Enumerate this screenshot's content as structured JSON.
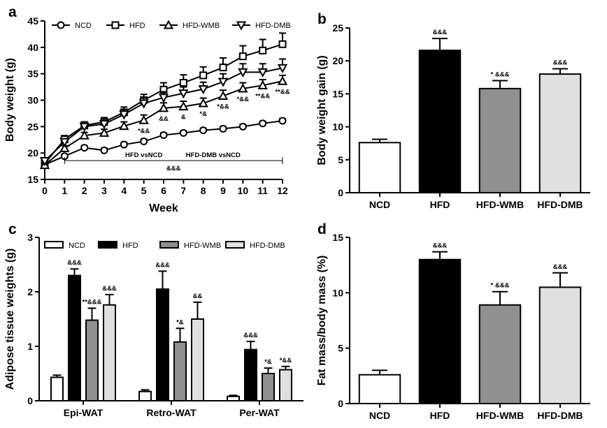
{
  "chart_data": [
    {
      "panel": "a",
      "type": "line",
      "xlabel": "Week",
      "ylabel": "Body weight (g)",
      "xlim": [
        0,
        12
      ],
      "ylim": [
        15,
        45
      ],
      "xticks": [
        "0",
        "1",
        "2",
        "3",
        "4",
        "5",
        "6",
        "7",
        "8",
        "9",
        "10",
        "11",
        "12"
      ],
      "yticks": [
        "15",
        "20",
        "25",
        "30",
        "35",
        "40",
        "45"
      ],
      "legend_position": "top",
      "x": [
        0,
        1,
        2,
        3,
        4,
        5,
        6,
        7,
        8,
        9,
        10,
        11,
        12
      ],
      "series": [
        {
          "name": "NCD",
          "marker": "circle",
          "values": [
            17.8,
            19.4,
            21.0,
            20.5,
            21.6,
            22.2,
            23.4,
            23.8,
            24.3,
            24.6,
            25.0,
            25.6,
            26.1
          ],
          "errors": [
            0.4,
            0.4,
            0.4,
            0.4,
            0.4,
            0.4,
            0.4,
            0.4,
            0.4,
            0.4,
            0.4,
            0.4,
            0.4
          ]
        },
        {
          "name": "HFD",
          "marker": "square",
          "values": [
            18.0,
            22.6,
            25.2,
            25.9,
            27.7,
            30.0,
            32.0,
            33.3,
            34.7,
            36.2,
            38.3,
            39.4,
            40.6
          ],
          "errors": [
            0.6,
            0.7,
            0.7,
            0.8,
            1.0,
            1.1,
            1.3,
            1.5,
            1.6,
            1.8,
            2.0,
            2.1,
            2.1
          ]
        },
        {
          "name": "HFD-WMB",
          "marker": "triangle-up",
          "values": [
            17.7,
            20.9,
            23.3,
            23.8,
            25.1,
            26.2,
            28.5,
            28.8,
            29.4,
            30.8,
            32.2,
            32.8,
            33.6
          ],
          "errors": [
            0.4,
            0.5,
            0.6,
            0.7,
            0.8,
            1.0,
            1.0,
            1.0,
            1.0,
            1.1,
            1.1,
            1.1,
            1.1
          ]
        },
        {
          "name": "HFD-DMB",
          "marker": "triangle-down",
          "values": [
            18.5,
            22.1,
            25.0,
            25.5,
            27.3,
            29.4,
            30.5,
            31.3,
            32.1,
            33.5,
            35.3,
            35.3,
            36.1
          ],
          "errors": [
            0.6,
            0.6,
            0.7,
            0.7,
            0.9,
            1.0,
            1.1,
            1.2,
            1.3,
            1.5,
            1.6,
            1.6,
            1.7
          ]
        }
      ],
      "annotations": [
        {
          "x": 5,
          "text": "*&&"
        },
        {
          "x": 6,
          "text": "&&"
        },
        {
          "x": 7,
          "text": "&"
        },
        {
          "x": 8,
          "text": "*&"
        },
        {
          "x": 9,
          "text": "*&&"
        },
        {
          "x": 10,
          "text": "*&&"
        },
        {
          "x": 11,
          "text": "**&&"
        },
        {
          "x": 12,
          "text": "**&&"
        }
      ],
      "bracket": {
        "x_from": 1,
        "x_to": 12,
        "label_left": "HFD vsNCD",
        "label_right": "HFD-DMB vsNCD",
        "significance": "&&&"
      }
    },
    {
      "panel": "b",
      "type": "bar",
      "ylabel": "Body weight gain (g)",
      "ylim": [
        0,
        25
      ],
      "yticks": [
        "0",
        "5",
        "10",
        "15",
        "20",
        "25"
      ],
      "categories": [
        "NCD",
        "HFD",
        "HFD-WMB",
        "HFD-DMB"
      ],
      "values": [
        7.6,
        21.6,
        15.8,
        18.0
      ],
      "errors": [
        0.5,
        1.8,
        1.2,
        0.8
      ],
      "colors": [
        "#ffffff",
        "#000000",
        "#909090",
        "#e0e0e0"
      ],
      "annotations": [
        "",
        "&&&",
        "* &&&",
        "&&&"
      ]
    },
    {
      "panel": "c",
      "type": "bar",
      "ylabel": "Adipose tissue weights (g)",
      "ylim": [
        0,
        3
      ],
      "yticks": [
        "0",
        "1",
        "2",
        "3"
      ],
      "legend_position": "top",
      "categories": [
        "Epi-WAT",
        "Retro-WAT",
        "Per-WAT"
      ],
      "series": [
        {
          "name": "NCD",
          "color": "#ffffff",
          "values": [
            0.43,
            0.17,
            0.08
          ],
          "errors": [
            0.04,
            0.03,
            0.02
          ],
          "annotations": [
            "",
            "",
            ""
          ]
        },
        {
          "name": "HFD",
          "color": "#000000",
          "values": [
            2.3,
            2.05,
            0.94
          ],
          "errors": [
            0.12,
            0.33,
            0.15
          ],
          "annotations": [
            "&&&",
            "&&&",
            "&&&"
          ]
        },
        {
          "name": "HFD-WMB",
          "color": "#909090",
          "values": [
            1.48,
            1.08,
            0.5
          ],
          "errors": [
            0.22,
            0.25,
            0.1
          ],
          "annotations": [
            "**&&&",
            "*&",
            "*&"
          ]
        },
        {
          "name": "HFD-DMB",
          "color": "#e0e0e0",
          "values": [
            1.76,
            1.5,
            0.57
          ],
          "errors": [
            0.19,
            0.31,
            0.06
          ],
          "annotations": [
            "&&&",
            "&&",
            "*&&"
          ]
        }
      ]
    },
    {
      "panel": "d",
      "type": "bar",
      "ylabel": "Fat mass/body mass (%)",
      "ylim": [
        0,
        15
      ],
      "yticks": [
        "0",
        "5",
        "10",
        "15"
      ],
      "categories": [
        "NCD",
        "HFD",
        "HFD-WMB",
        "HFD-DMB"
      ],
      "values": [
        2.6,
        13.0,
        8.9,
        10.5
      ],
      "errors": [
        0.4,
        0.7,
        1.2,
        1.3
      ],
      "colors": [
        "#ffffff",
        "#000000",
        "#909090",
        "#e0e0e0"
      ],
      "annotations": [
        "",
        "&&&",
        "* &&&",
        "&&&"
      ]
    }
  ]
}
